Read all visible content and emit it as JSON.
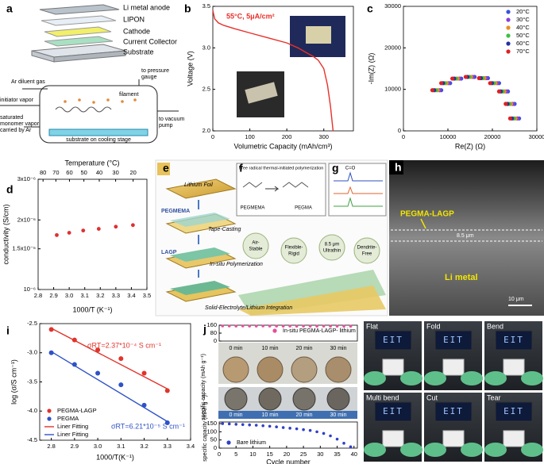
{
  "panel_letters": [
    "a",
    "b",
    "c",
    "d",
    "e",
    "f",
    "g",
    "h",
    "i",
    "j",
    "k"
  ],
  "panel_a": {
    "layers": [
      "Li metal anode",
      "LIPON",
      "Cathode",
      "Current Collector",
      "Substrate"
    ],
    "gas": "Ar diluent gas",
    "initiator": "initiator vapor",
    "monomer": [
      "saturated",
      "monomer vapor",
      "carried by Ar"
    ],
    "gauge": [
      "to pressure",
      "gauge"
    ],
    "filament": "filament",
    "pump": [
      "to vacuum",
      "pump"
    ],
    "stage": "substrate on cooling stage"
  },
  "panel_efg": {
    "steps": [
      "Lithium Foil",
      "PEGMEMA",
      "Tape-Casting",
      "LAGP",
      "In-situ Polymerization",
      "Solid-Electrolyte/Lithium Integration"
    ],
    "reaction_title": "Free radical thermal-initiated polymerization",
    "monomer": "PEGMEMA",
    "polymer": "PEGMA",
    "peak": "C=O",
    "features": [
      [
        "Air-",
        "Stable"
      ],
      [
        "Flexible-",
        "Rigid"
      ],
      [
        "8.5 μm",
        "Ultrathin"
      ],
      [
        "Dendrite-",
        "Free"
      ]
    ]
  },
  "panel_h": {
    "layer": "PEGMA-LAGP",
    "thickness": "8.5 μm",
    "base": "Li metal",
    "scale": "10 μm"
  },
  "panel_j_photos": {
    "times": [
      "0 min",
      "10 min",
      "20 min",
      "30 min"
    ]
  },
  "panel_k": {
    "labels": [
      "Flat",
      "Fold",
      "Bend",
      "Multi bend",
      "Cut",
      "Tear"
    ],
    "screen": "EIT"
  },
  "chart_data": [
    {
      "type": "line",
      "x_label": "Volumetric Capacity (mAh/cm³)",
      "y_label": "Voltage (V)",
      "annotation": "55°C, 5μA/cm²",
      "color": "#e8302a",
      "x": [
        0,
        5,
        15,
        30,
        60,
        100,
        150,
        200,
        230,
        250,
        270,
        285,
        300,
        310,
        318,
        325
      ],
      "values": [
        3.45,
        3.35,
        3.3,
        3.27,
        3.23,
        3.18,
        3.12,
        3.06,
        3.0,
        2.95,
        2.9,
        2.85,
        2.75,
        2.55,
        2.3,
        2.0
      ],
      "xlim": [
        0,
        380
      ],
      "xticks": [
        0,
        100,
        200,
        300
      ],
      "ylim": [
        2.0,
        3.5
      ],
      "yticks": [
        {
          "value": 2,
          "label": "2.0"
        },
        2.5,
        {
          "value": 3,
          "label": "3.0"
        },
        3.5
      ]
    },
    {
      "type": "scatter",
      "x_label": "Re(Z) (Ω)",
      "y_label": "-Im(Z) (Ω)",
      "legend": "upper right",
      "xlim": [
        0,
        30000
      ],
      "xticks": [
        0,
        10000,
        20000,
        30000
      ],
      "ylim": [
        0,
        30000
      ],
      "yticks": [
        0,
        10000,
        20000,
        30000
      ],
      "series": [
        {
          "name": "20°C",
          "color": "#3b4fe0",
          "x": [
            8500,
            10500,
            13000,
            16000,
            19000,
            21500,
            23500,
            25000,
            26000
          ],
          "values": [
            9800,
            11500,
            12600,
            13000,
            12700,
            11500,
            9500,
            6500,
            3000
          ]
        },
        {
          "name": "30°C",
          "color": "#8a3fd6",
          "x": [
            8100,
            10100,
            12600,
            15600,
            18600,
            21100,
            23100,
            24600,
            25600
          ],
          "values": [
            9800,
            11500,
            12600,
            13000,
            12700,
            11500,
            9500,
            6500,
            3000
          ]
        },
        {
          "name": "40°C",
          "color": "#e8901e",
          "x": [
            7700,
            9700,
            12200,
            15200,
            18200,
            20700,
            22700,
            24200,
            25200
          ],
          "values": [
            9800,
            11500,
            12600,
            13000,
            12700,
            11500,
            9500,
            6500,
            3000
          ]
        },
        {
          "name": "50°C",
          "color": "#3fbf3f",
          "x": [
            7300,
            9300,
            11800,
            14800,
            17800,
            20300,
            22300,
            23800,
            24800
          ],
          "values": [
            9800,
            11500,
            12600,
            13000,
            12700,
            11500,
            9500,
            6500,
            3000
          ]
        },
        {
          "name": "60°C",
          "color": "#26309e",
          "x": [
            6900,
            8900,
            11400,
            14400,
            17400,
            19900,
            21900,
            23400,
            24400
          ],
          "values": [
            9800,
            11500,
            12600,
            13000,
            12700,
            11500,
            9500,
            6500,
            3000
          ]
        },
        {
          "name": "70°C",
          "color": "#e02020",
          "x": [
            6500,
            8500,
            11000,
            14000,
            17000,
            19500,
            21500,
            23000,
            24000
          ],
          "values": [
            9800,
            11500,
            12600,
            13000,
            12700,
            11500,
            9500,
            6500,
            3000
          ]
        }
      ]
    },
    {
      "type": "scatter",
      "x_label": "1000/T (K⁻¹)",
      "y_label": "conductivity (S/cm)",
      "x2_label": "Temperature (°C)",
      "x2ticks": [
        80,
        70,
        60,
        50,
        40,
        30,
        20
      ],
      "yscale": "log",
      "xlim": [
        2.8,
        3.5
      ],
      "xticks": [
        2.8,
        2.9,
        {
          "value": 3,
          "label": "3.0"
        },
        3.1,
        3.2,
        3.3,
        3.4,
        3.5
      ],
      "ylim": [
        1e-06,
        3e-06
      ],
      "yticks": [
        {
          "value": 1e-06,
          "label": "10⁻⁶"
        },
        {
          "value": 1.5e-06,
          "label": "1.5x10⁻⁶"
        },
        {
          "value": 2e-06,
          "label": "2x10⁻⁶"
        },
        {
          "value": 3e-06,
          "label": "3x10⁻⁶"
        }
      ],
      "series": [
        {
          "color": "#e03030",
          "x": [
            2.92,
            3.0,
            3.09,
            3.19,
            3.3,
            3.41
          ],
          "values": [
            1.72e-06,
            1.76e-06,
            1.8e-06,
            1.83e-06,
            1.87e-06,
            1.9e-06
          ]
        }
      ]
    },
    {
      "type": "scatter",
      "x_label": "1000/T(K⁻¹)",
      "y_label": "log (σ/S cm⁻¹)",
      "legend": "lower left",
      "annotations": [
        "σRT=2.37*10⁻⁴ S cm⁻¹",
        "σRT=6.21*10⁻⁵ S cm⁻¹"
      ],
      "xlim": [
        2.75,
        3.4
      ],
      "xticks": [
        2.8,
        2.9,
        {
          "value": 3,
          "label": "3.0"
        },
        3.1,
        3.2,
        3.3,
        3.4
      ],
      "ylim": [
        -4.5,
        -2.5
      ],
      "yticks": [
        -4.5,
        {
          "value": -4,
          "label": "-4.0"
        },
        -3.5,
        {
          "value": -3,
          "label": "-3.0"
        },
        -2.5
      ],
      "series": [
        {
          "name": "PEGMA-LAGP",
          "color": "#e0342c",
          "x": [
            2.8,
            2.9,
            3.0,
            3.1,
            3.2,
            3.3
          ],
          "values": [
            -2.6,
            -2.78,
            -2.95,
            -3.1,
            -3.35,
            -3.65
          ]
        },
        {
          "name": "PEGMA",
          "color": "#2f52c8",
          "x": [
            2.8,
            2.9,
            3.0,
            3.1,
            3.2,
            3.3
          ],
          "values": [
            -3.0,
            -3.2,
            -3.35,
            -3.55,
            -3.9,
            -4.2
          ]
        },
        {
          "name": "Liner Fitting",
          "color": "#e0342c",
          "mode": "line",
          "x": [
            2.8,
            3.3
          ],
          "values": [
            -2.58,
            -3.62
          ]
        },
        {
          "name": "Liner Fitting",
          "color": "#2f52c8",
          "mode": "line",
          "x": [
            2.8,
            3.3
          ],
          "values": [
            -2.98,
            -4.18
          ]
        }
      ]
    },
    {
      "type": "scatter",
      "y_label": "specific capacity (mAh g⁻¹)",
      "legend": "upper right",
      "xlim": [
        0,
        41
      ],
      "ylim": [
        0,
        160
      ],
      "yticks": [
        0,
        80,
        160
      ],
      "series": [
        {
          "name": "In-situ PEGMA-LAGP- lithium",
          "color": "#e84c9a",
          "x": [
            1,
            3,
            5,
            7,
            9,
            11,
            13,
            15,
            17,
            19,
            21,
            23,
            25,
            27,
            29,
            31,
            33,
            35,
            37,
            39
          ],
          "values": [
            152,
            152,
            151,
            152,
            151,
            151,
            152,
            151,
            151,
            150,
            151,
            150,
            151,
            150,
            150,
            151,
            150,
            150,
            150,
            150
          ]
        }
      ]
    },
    {
      "type": "scatter",
      "x_label": "Cycle number",
      "y_label": "specific capacity (mAh g⁻¹)",
      "legend": "lower left",
      "xlim": [
        0,
        41
      ],
      "xticks": [
        0,
        5,
        10,
        15,
        20,
        25,
        30,
        35,
        40
      ],
      "ylim": [
        0,
        160
      ],
      "yticks": [
        0,
        50,
        100,
        150
      ],
      "series": [
        {
          "name": "Bare lithium",
          "color": "#2f3fc8",
          "x": [
            1,
            3,
            5,
            7,
            9,
            11,
            13,
            15,
            17,
            19,
            21,
            23,
            25,
            27,
            29,
            31,
            33,
            35,
            37,
            39
          ],
          "values": [
            150,
            148,
            146,
            144,
            142,
            140,
            137,
            134,
            130,
            126,
            122,
            118,
            113,
            108,
            100,
            90,
            75,
            55,
            30,
            8
          ]
        }
      ]
    }
  ]
}
